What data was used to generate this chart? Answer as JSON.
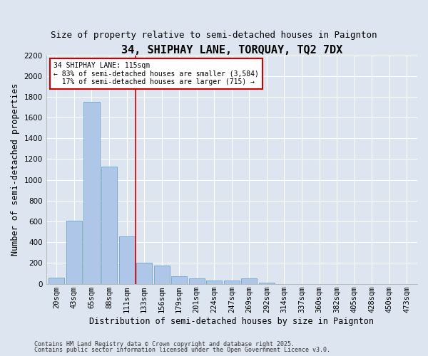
{
  "title1": "34, SHIPHAY LANE, TORQUAY, TQ2 7DX",
  "title2": "Size of property relative to semi-detached houses in Paignton",
  "xlabel": "Distribution of semi-detached houses by size in Paignton",
  "ylabel": "Number of semi-detached properties",
  "categories": [
    "20sqm",
    "43sqm",
    "65sqm",
    "88sqm",
    "111sqm",
    "133sqm",
    "156sqm",
    "179sqm",
    "201sqm",
    "224sqm",
    "247sqm",
    "269sqm",
    "292sqm",
    "314sqm",
    "337sqm",
    "360sqm",
    "382sqm",
    "405sqm",
    "428sqm",
    "450sqm",
    "473sqm"
  ],
  "values": [
    60,
    610,
    1750,
    1130,
    460,
    200,
    175,
    75,
    55,
    35,
    30,
    50,
    10,
    0,
    0,
    0,
    0,
    0,
    0,
    0,
    0
  ],
  "bar_color": "#aec6e8",
  "bar_edge_color": "#7aaad0",
  "vline_x": 4.5,
  "vline_color": "#cc0000",
  "annotation_text": "34 SHIPHAY LANE: 115sqm\n← 83% of semi-detached houses are smaller (3,584)\n  17% of semi-detached houses are larger (715) →",
  "annotation_box_color": "#cc0000",
  "ylim": [
    0,
    2200
  ],
  "yticks": [
    0,
    200,
    400,
    600,
    800,
    1000,
    1200,
    1400,
    1600,
    1800,
    2000,
    2200
  ],
  "footer1": "Contains HM Land Registry data © Crown copyright and database right 2025.",
  "footer2": "Contains public sector information licensed under the Open Government Licence v3.0.",
  "bg_color": "#dde6f0",
  "plot_bg_color": "#dde6f0",
  "title1_fontsize": 11,
  "title2_fontsize": 9,
  "tick_fontsize": 7.5,
  "label_fontsize": 8.5,
  "footer_fontsize": 6,
  "ann_fontsize": 7
}
